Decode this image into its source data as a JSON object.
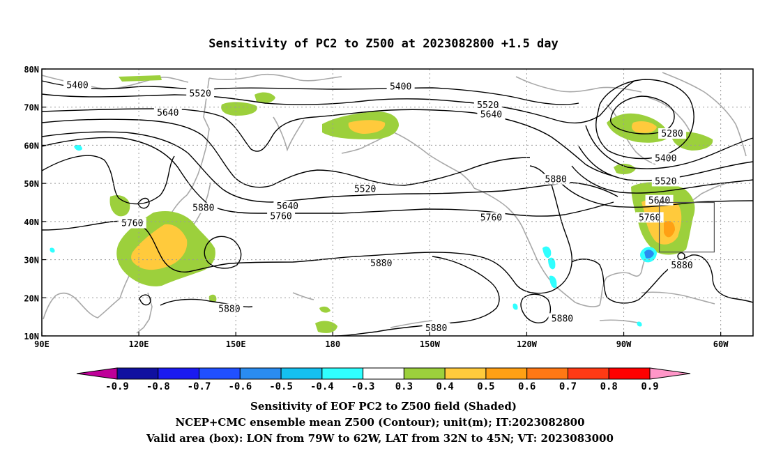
{
  "chart_data": {
    "type": "map",
    "title": "Sensitivity of PC2 to Z500 at 2023082800 +1.5 day",
    "lon_range": [
      90,
      310
    ],
    "lat_range": [
      10,
      80
    ],
    "lon_tick_labels": [
      "90E",
      "120E",
      "150E",
      "180",
      "150W",
      "120W",
      "90W",
      "60W"
    ],
    "lon_ticks": [
      90,
      120,
      150,
      180,
      210,
      240,
      270,
      300
    ],
    "lat_tick_labels": [
      "10N",
      "20N",
      "30N",
      "40N",
      "50N",
      "60N",
      "70N",
      "80N"
    ],
    "lat_ticks": [
      10,
      20,
      30,
      40,
      50,
      60,
      70,
      80
    ],
    "grid": true,
    "contour_labels": [
      {
        "text": "5400",
        "lon": 101,
        "lat": 75.7
      },
      {
        "text": "5520",
        "lon": 139,
        "lat": 73.5
      },
      {
        "text": "5640",
        "lon": 129,
        "lat": 68.5
      },
      {
        "text": "5400",
        "lon": 201,
        "lat": 75.3
      },
      {
        "text": "5520",
        "lon": 228,
        "lat": 70.5
      },
      {
        "text": "5640",
        "lon": 229,
        "lat": 68.0
      },
      {
        "text": "5280",
        "lon": 285,
        "lat": 63.0
      },
      {
        "text": "5400",
        "lon": 283,
        "lat": 56.5
      },
      {
        "text": "5520",
        "lon": 283,
        "lat": 50.5
      },
      {
        "text": "5640",
        "lon": 281,
        "lat": 45.5
      },
      {
        "text": "5760",
        "lon": 278,
        "lat": 41.0
      },
      {
        "text": "5880",
        "lon": 249,
        "lat": 51.0
      },
      {
        "text": "5520",
        "lon": 190,
        "lat": 48.5
      },
      {
        "text": "5640",
        "lon": 166,
        "lat": 44.0
      },
      {
        "text": "5760",
        "lon": 164,
        "lat": 41.3
      },
      {
        "text": "5880",
        "lon": 140,
        "lat": 43.5
      },
      {
        "text": "5760",
        "lon": 118,
        "lat": 39.5
      },
      {
        "text": "5760",
        "lon": 229,
        "lat": 41.0
      },
      {
        "text": "5880",
        "lon": 195,
        "lat": 29.0
      },
      {
        "text": "5880",
        "lon": 148,
        "lat": 17.0
      },
      {
        "text": "5880",
        "lon": 212,
        "lat": 12.0
      },
      {
        "text": "5880",
        "lon": 251,
        "lat": 14.5
      },
      {
        "text": "5880",
        "lon": 288,
        "lat": 28.5
      }
    ],
    "valid_box": {
      "lon": [
        281,
        298
      ],
      "lat": [
        32,
        45
      ]
    },
    "colorbar": {
      "labels": [
        "-0.9",
        "-0.8",
        "-0.7",
        "-0.6",
        "-0.5",
        "-0.4",
        "-0.3",
        "0.3",
        "0.4",
        "0.5",
        "0.6",
        "0.7",
        "0.8",
        "0.9"
      ],
      "colors": [
        "#bf0099",
        "#1010a0",
        "#1a1af0",
        "#2050ff",
        "#2a8cf0",
        "#14c0f0",
        "#30ffff",
        "#ffffff",
        "#9cd03c",
        "#ffca3c",
        "#ffa014",
        "#ff7814",
        "#ff3a14",
        "#ff0000",
        "#ff96c8"
      ]
    }
  },
  "captions": {
    "line1": "Sensitivity of EOF PC2 to Z500 field (Shaded)",
    "line2": "NCEP+CMC ensemble mean Z500 (Contour); unit(m); IT:2023082800",
    "line3": "Valid area (box): LON from 79W to 62W, LAT from 32N to 45N; VT: 2023083000"
  }
}
